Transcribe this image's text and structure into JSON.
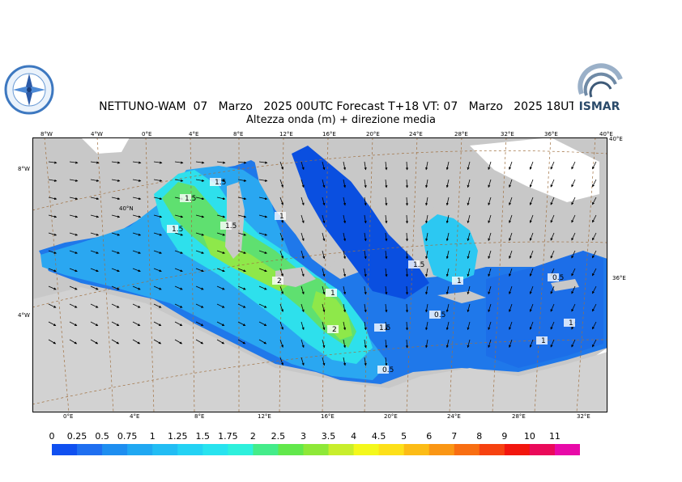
{
  "header": {
    "title_line1": "NETTUNO-WAM  07   Marzo   2025 00UTC Forecast T+18 VT: 07   Marzo   2025 18UTC",
    "title_line2": "Altezza onda (m) + direzione media"
  },
  "logos": {
    "left_icon": "compass-rose-logo",
    "right_text": "ISMAR"
  },
  "map": {
    "top_lon_labels": [
      "8°W",
      "4°W",
      "0°E",
      "4°E",
      "8°E",
      "12°E",
      "16°E",
      "20°E",
      "24°E",
      "28°E",
      "32°E",
      "36°E",
      "40°E"
    ],
    "bottom_lon_labels": [
      "0°E",
      "4°E",
      "8°E",
      "12°E",
      "16°E",
      "20°E",
      "24°E",
      "28°E",
      "32°E"
    ],
    "left_lat_labels": [
      "8°W",
      "4°W"
    ],
    "right_lat_labels": [
      "40°E",
      "36°E"
    ],
    "inner_lat_label": "40°N",
    "contour_labels": [
      "1.5",
      "1.5",
      "1.5",
      "1",
      "1.5",
      "2",
      "1",
      "2",
      "1.5",
      "0.5",
      "1",
      "0.5",
      "1",
      "1.5",
      "0.5",
      "1"
    ],
    "colors": {
      "land": "#c8c8c8",
      "land_africa": "#d2d2d2",
      "water_lowest": "#0a4fe0",
      "water_low": "#1f78ea",
      "water_mid": "#2aa7f1",
      "water_midhigh": "#2cc8f2",
      "water_cyan": "#2ee0ec",
      "water_green": "#5fe070",
      "water_yellowgreen": "#8ee84a"
    }
  },
  "colorbar": {
    "labels": [
      "0",
      "0.25",
      "0.5",
      "0.75",
      "1",
      "1.25",
      "1.5",
      "1.75",
      "2",
      "2.5",
      "3",
      "3.5",
      "4",
      "4.5",
      "5",
      "6",
      "7",
      "8",
      "9",
      "10",
      "11"
    ],
    "colors": [
      "#1050f0",
      "#1f6ff0",
      "#1e8ef0",
      "#20a8f2",
      "#22bdf4",
      "#24d2f4",
      "#28e3ef",
      "#2ef0dc",
      "#44ec8a",
      "#62e84c",
      "#8ee838",
      "#c8ee2c",
      "#f4f81c",
      "#fde019",
      "#fcbc16",
      "#fa9614",
      "#f86e12",
      "#f64210",
      "#f2160e",
      "#ea0a5a",
      "#e80aa8"
    ]
  }
}
